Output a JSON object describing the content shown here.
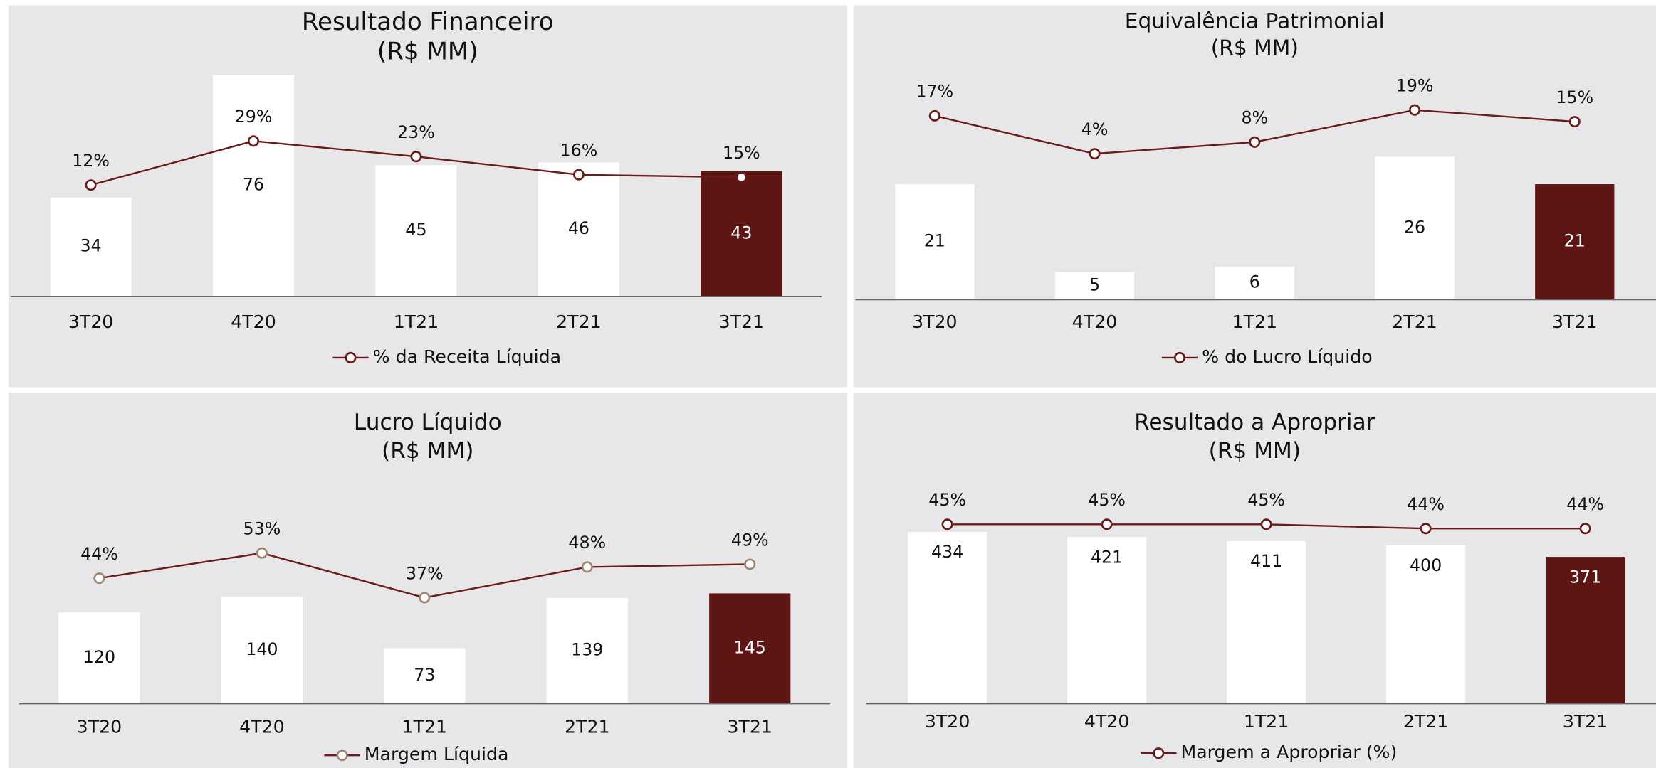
{
  "chart_data": [
    {
      "type": "bar_line",
      "title": "Resultado Financeiro",
      "subtitle": "(R$ MM)",
      "categories": [
        "3T20",
        "4T20",
        "1T21",
        "2T21",
        "3T21"
      ],
      "values": [
        34,
        76,
        45,
        46,
        43
      ],
      "colors": [
        "#ffffff",
        "#ffffff",
        "#ffffff",
        "#ffffff",
        "#5e1614"
      ],
      "label_position": "center",
      "ylim": [
        0,
        80
      ],
      "y2lim": [
        -31,
        59
      ],
      "series": [
        {
          "name": "% da Receita Líquida",
          "color": "#6a1b18",
          "marker_color": "#6a1b18",
          "axis": "y2",
          "values": [
            12,
            29,
            23,
            16,
            15
          ],
          "value_labels": [
            "12%",
            "29%",
            "23%",
            "16%",
            "15%"
          ]
        }
      ]
    },
    {
      "type": "bar_line",
      "title": "Equivalência Patrimonial",
      "subtitle": "(R$ MM)",
      "categories": [
        "3T20",
        "4T20",
        "1T21",
        "2T21",
        "3T21"
      ],
      "values": [
        21,
        5,
        6,
        26,
        21
      ],
      "colors": [
        "#ffffff",
        "#ffffff",
        "#ffffff",
        "#ffffff",
        "#5e1614"
      ],
      "label_position": "center",
      "ylim": [
        0,
        43
      ],
      "y2lim": [
        -46,
        35
      ],
      "series": [
        {
          "name": "% do Lucro Líquido",
          "color": "#6a1b18",
          "marker_color": "#6a1b18",
          "axis": "y2",
          "values": [
            17,
            4,
            8,
            19,
            15
          ],
          "value_labels": [
            "17%",
            "4%",
            "8%",
            "19%",
            "15%"
          ]
        }
      ]
    },
    {
      "type": "bar_line",
      "title": "Lucro Líquido",
      "subtitle": "(R$ MM)",
      "categories": [
        "3T20",
        "4T20",
        "1T21",
        "2T21",
        "3T21"
      ],
      "values": [
        120,
        140,
        73,
        139,
        145
      ],
      "colors": [
        "#ffffff",
        "#ffffff",
        "#ffffff",
        "#ffffff",
        "#5e1614"
      ],
      "label_position": "center",
      "ylim": [
        0,
        308
      ],
      "y2lim": [
        -1,
        83
      ],
      "series": [
        {
          "name": "Margem Líquida",
          "color": "#6a1b18",
          "marker_color": "#a08670",
          "axis": "y2",
          "values": [
            44,
            53,
            37,
            48,
            49
          ],
          "value_labels": [
            "44%",
            "53%",
            "37%",
            "48%",
            "49%"
          ]
        }
      ]
    },
    {
      "type": "bar_line",
      "title": "Resultado a Apropriar",
      "subtitle": "(R$ MM)",
      "categories": [
        "3T20",
        "4T20",
        "1T21",
        "2T21",
        "3T21"
      ],
      "values": [
        434,
        421,
        411,
        400,
        371
      ],
      "colors": [
        "#ffffff",
        "#ffffff",
        "#ffffff",
        "#ffffff",
        "#5e1614"
      ],
      "label_position": "top",
      "ylim": [
        0,
        592
      ],
      "y2lim": [
        2.5,
        58
      ],
      "series": [
        {
          "name": "Margem a Apropriar (%)",
          "color": "#6a1b18",
          "marker_color": "#6a1b18",
          "axis": "y2",
          "values": [
            45,
            45,
            45,
            44,
            44
          ],
          "value_labels": [
            "45%",
            "45%",
            "45%",
            "44%",
            "44%"
          ]
        }
      ]
    }
  ]
}
